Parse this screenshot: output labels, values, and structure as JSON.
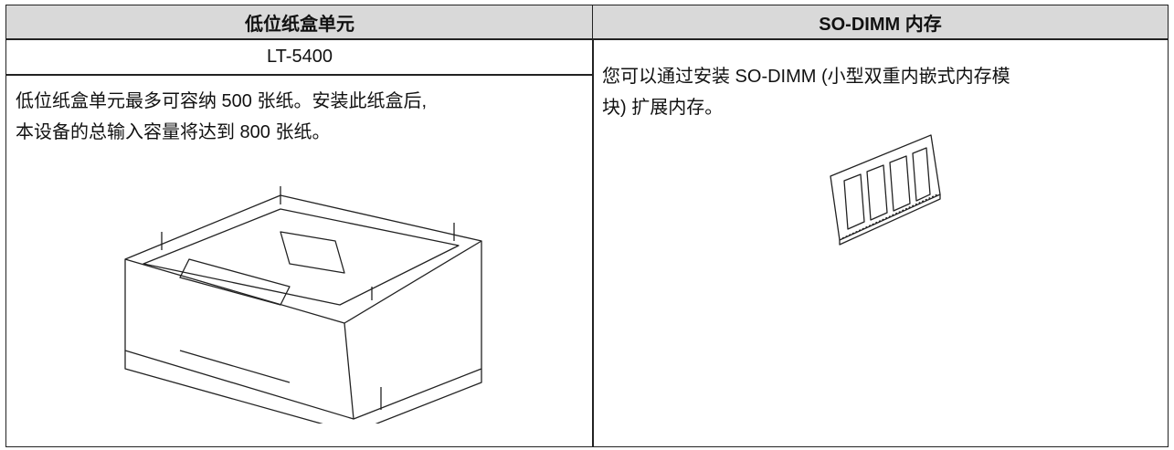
{
  "table": {
    "headers": [
      "低位纸盒单元",
      "SO-DIMM 内存"
    ],
    "left": {
      "model": "LT-5400",
      "description": [
        "低位纸盒单元最多可容纳 500 张纸。安装此纸盒后,",
        "本设备的总输入容量将达到 800 张纸。"
      ]
    },
    "right": {
      "description": [
        "您可以通过安装 SO-DIMM (小型双重内嵌式内存模",
        "块) 扩展内存。"
      ]
    }
  }
}
